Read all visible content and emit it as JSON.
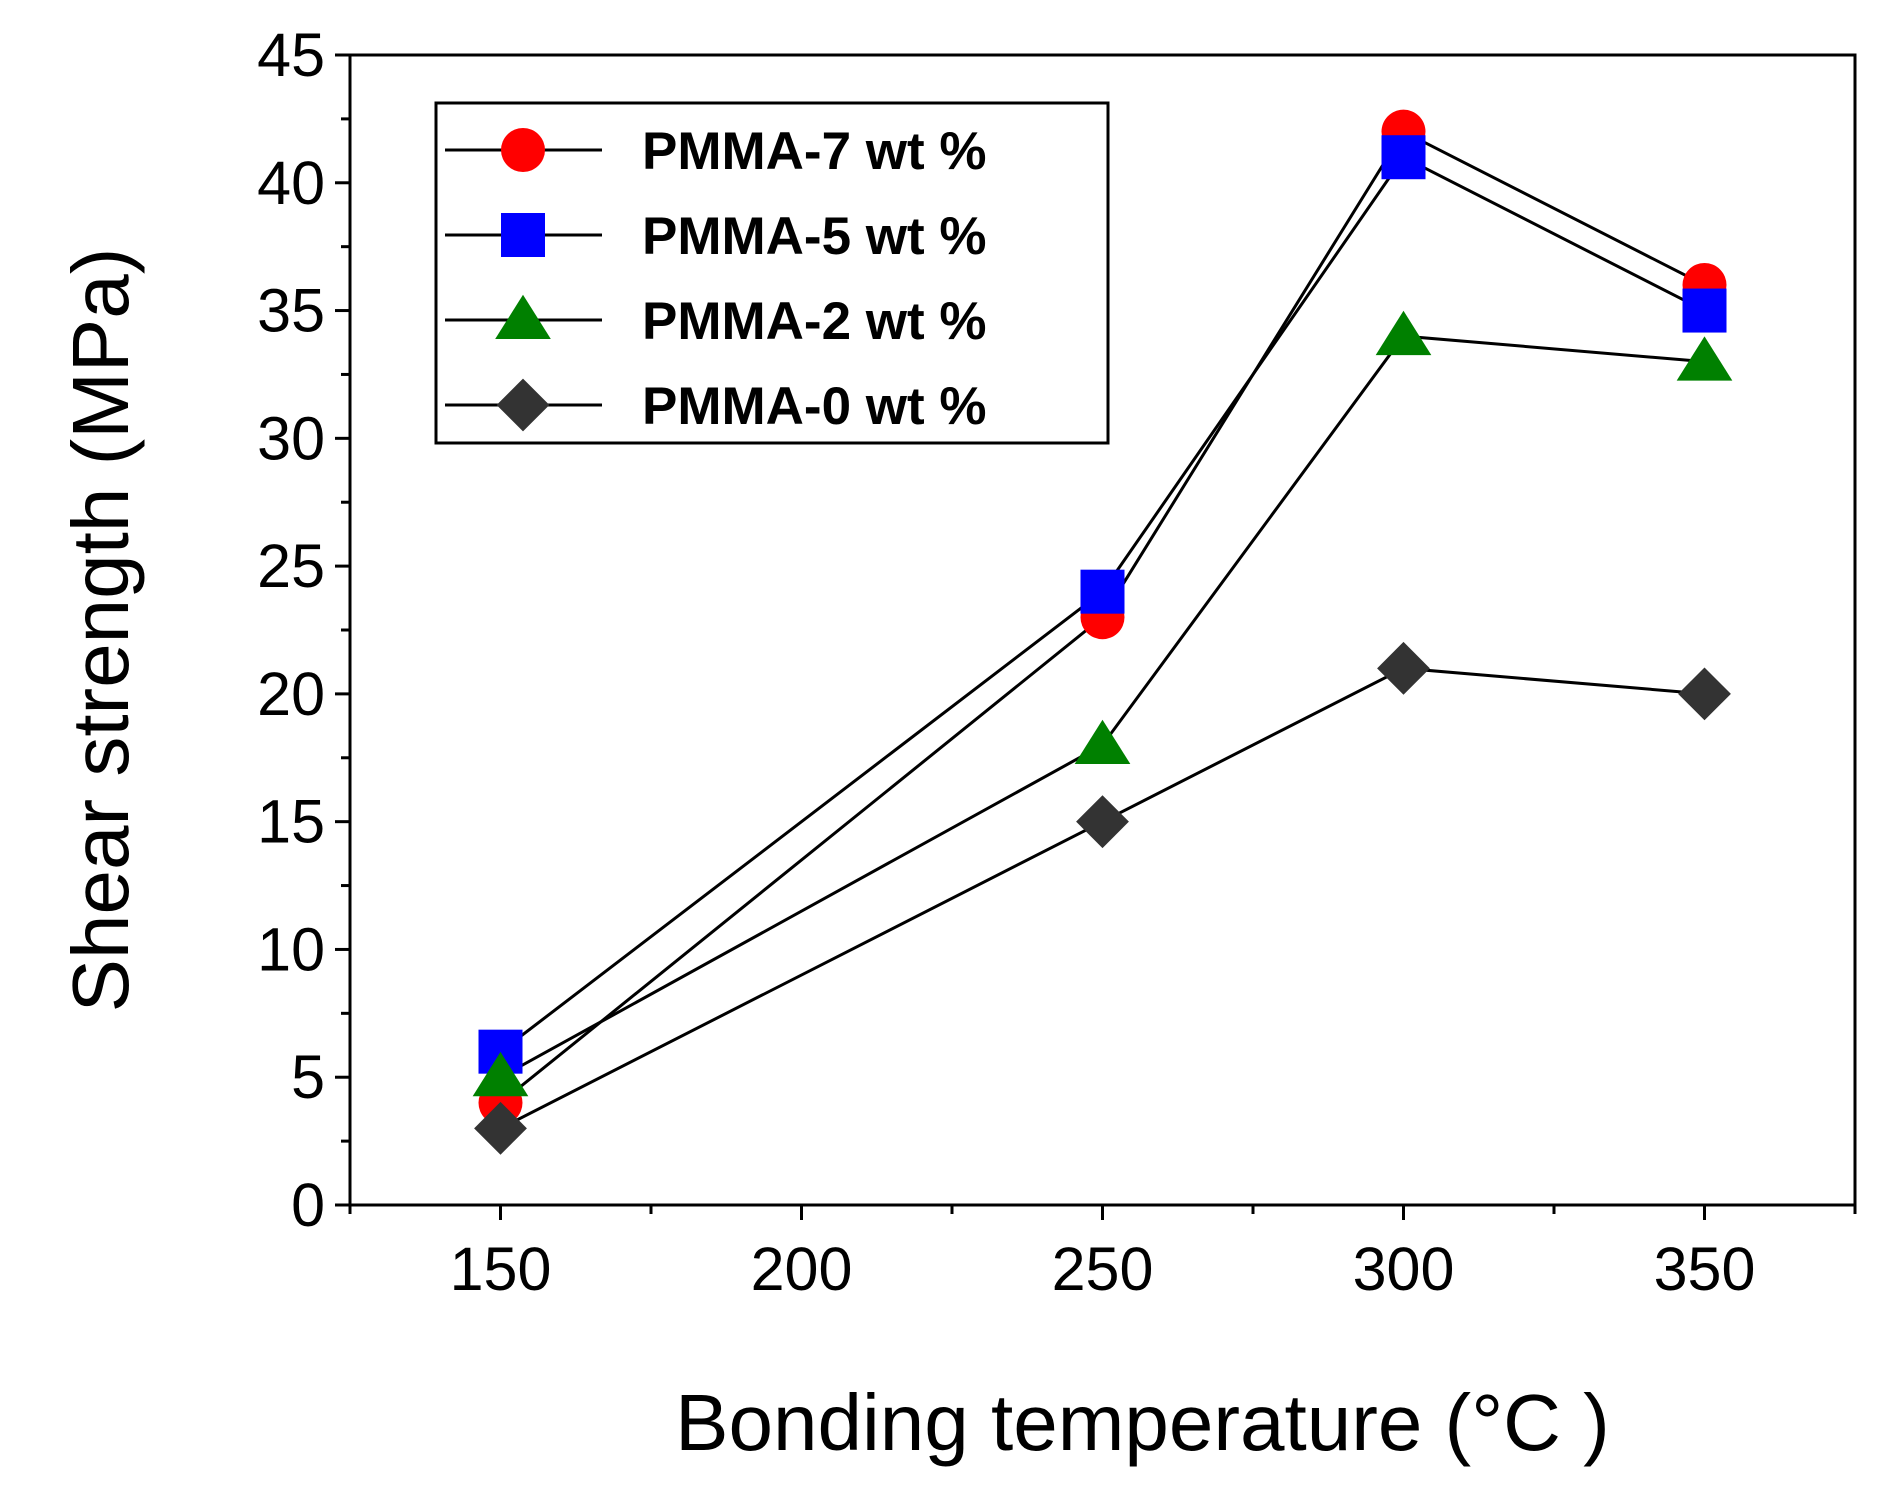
{
  "chart_data": {
    "type": "line",
    "title": "",
    "xlabel": "Bonding temperature (°C )",
    "ylabel": "Shear strength (MPa)",
    "xlim": [
      125,
      375
    ],
    "ylim": [
      0,
      45
    ],
    "xticks": [
      150,
      200,
      250,
      300,
      350
    ],
    "yticks": [
      0,
      5,
      10,
      15,
      20,
      25,
      30,
      35,
      40,
      45
    ],
    "x": [
      150,
      250,
      300,
      350
    ],
    "legend_position": "top-left",
    "series": [
      {
        "name": "PMMA-7 wt %",
        "marker": "circle",
        "color": "#ff0000",
        "values": [
          4,
          23,
          42,
          36
        ]
      },
      {
        "name": "PMMA-5 wt %",
        "marker": "square",
        "color": "#0000ff",
        "values": [
          6,
          24,
          41,
          35
        ]
      },
      {
        "name": "PMMA-2 wt %",
        "marker": "triangle",
        "color": "#008000",
        "values": [
          5,
          18,
          34,
          33
        ]
      },
      {
        "name": "PMMA-0 wt %",
        "marker": "diamond",
        "color": "#333333",
        "values": [
          3,
          15,
          21,
          20
        ]
      }
    ]
  }
}
